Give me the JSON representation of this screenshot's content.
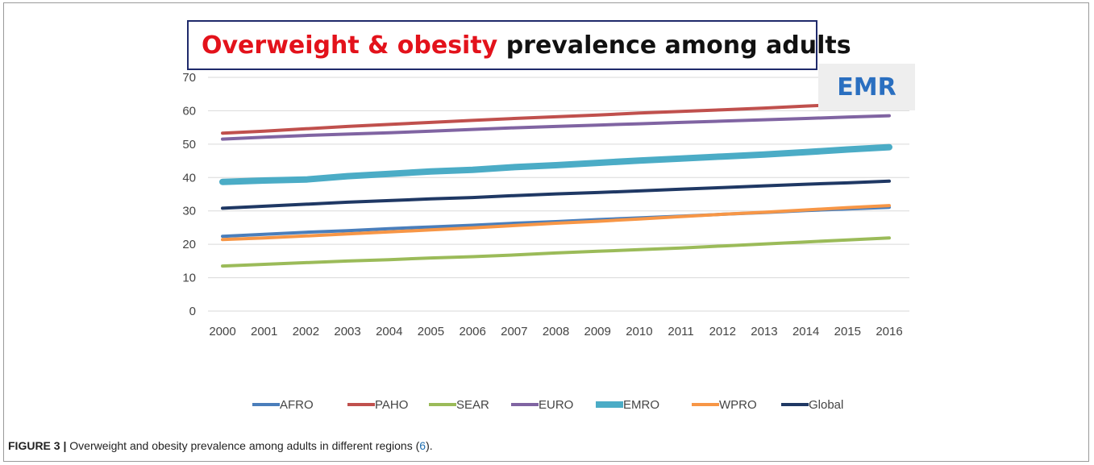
{
  "chart_data": {
    "type": "line",
    "title_highlight": "Overweight & obesity",
    "title_rest": " prevalence among adults",
    "badge": "EMR",
    "x": [
      2000,
      2001,
      2002,
      2003,
      2004,
      2005,
      2006,
      2007,
      2008,
      2009,
      2010,
      2011,
      2012,
      2013,
      2014,
      2015,
      2016
    ],
    "ylim": [
      0,
      70
    ],
    "yticks": [
      0,
      10,
      20,
      30,
      40,
      50,
      60,
      70
    ],
    "grid": true,
    "legend_position": "bottom",
    "series": [
      {
        "name": "AFRO",
        "color": "#4a7ebb",
        "width": 4,
        "values": [
          22.4,
          23.0,
          23.6,
          24.1,
          24.7,
          25.2,
          25.7,
          26.3,
          26.8,
          27.4,
          27.9,
          28.4,
          29.0,
          29.5,
          30.1,
          30.6,
          31.1
        ]
      },
      {
        "name": "PAHO",
        "color": "#c0504d",
        "width": 4,
        "values": [
          53.3,
          53.9,
          54.6,
          55.3,
          55.9,
          56.5,
          57.1,
          57.7,
          58.2,
          58.7,
          59.3,
          59.8,
          60.3,
          60.8,
          61.4,
          61.9,
          62.5
        ]
      },
      {
        "name": "SEAR",
        "color": "#9bbb59",
        "width": 4,
        "values": [
          13.5,
          14.0,
          14.5,
          15.0,
          15.4,
          15.9,
          16.3,
          16.8,
          17.4,
          17.9,
          18.4,
          18.9,
          19.5,
          20.1,
          20.7,
          21.3,
          21.9
        ]
      },
      {
        "name": "EURO",
        "color": "#8064a2",
        "width": 4,
        "values": [
          51.5,
          52.1,
          52.6,
          53.0,
          53.4,
          53.9,
          54.4,
          54.9,
          55.3,
          55.7,
          56.1,
          56.5,
          56.9,
          57.3,
          57.7,
          58.1,
          58.5
        ]
      },
      {
        "name": "EMRO",
        "color": "#4bacc6",
        "width": 8,
        "values": [
          38.7,
          39.1,
          39.4,
          40.4,
          41.1,
          41.8,
          42.3,
          43.1,
          43.7,
          44.4,
          45.1,
          45.7,
          46.3,
          46.9,
          47.6,
          48.4,
          49.1
        ]
      },
      {
        "name": "WPRO",
        "color": "#f79646",
        "width": 4,
        "values": [
          21.4,
          21.9,
          22.5,
          23.1,
          23.7,
          24.3,
          24.9,
          25.6,
          26.3,
          26.9,
          27.6,
          28.3,
          29.0,
          29.6,
          30.3,
          31.0,
          31.6
        ]
      },
      {
        "name": "Global",
        "color": "#1f3864",
        "width": 4,
        "values": [
          30.8,
          31.4,
          32.0,
          32.6,
          33.1,
          33.6,
          34.0,
          34.6,
          35.1,
          35.5,
          36.0,
          36.5,
          37.0,
          37.5,
          38.0,
          38.4,
          38.9
        ]
      }
    ]
  },
  "caption": {
    "label": "FIGURE 3 |",
    "text": " Overweight and obesity prevalence among adults in different regions (",
    "ref": "6",
    "end": ")."
  }
}
